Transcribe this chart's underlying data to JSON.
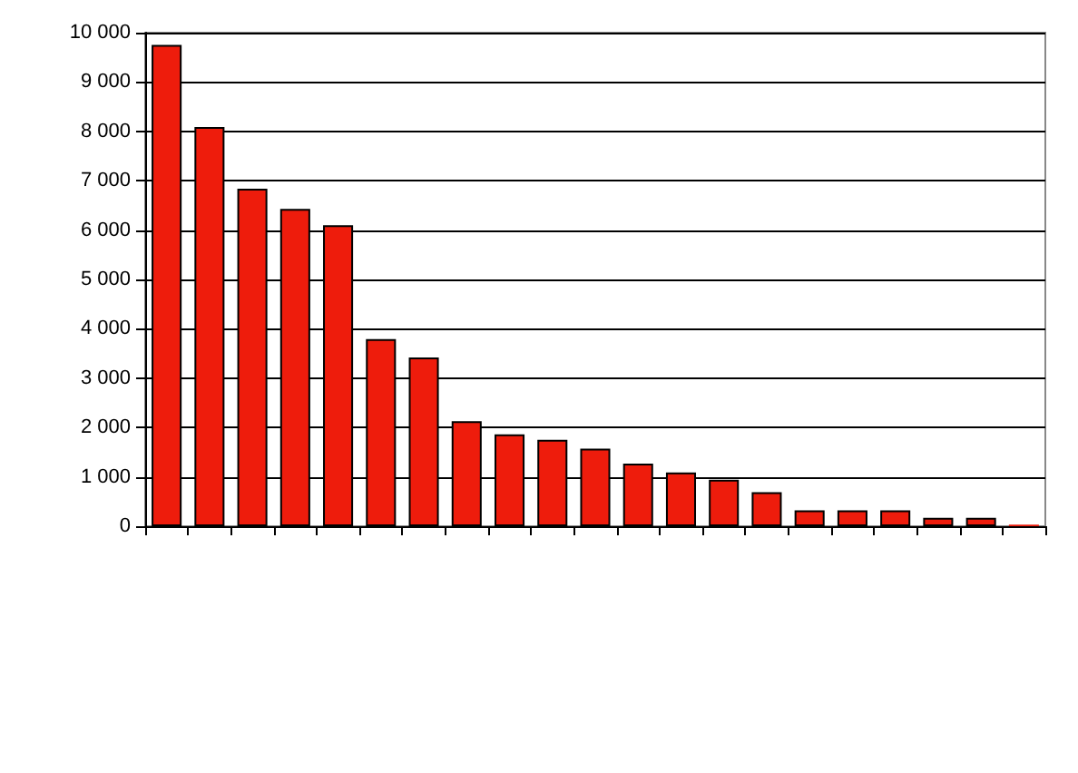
{
  "chart_data": {
    "type": "bar",
    "categories": [
      null,
      null,
      null,
      null,
      null,
      null,
      null,
      null,
      null,
      null,
      null,
      null,
      null,
      null,
      null,
      null,
      null,
      null,
      null,
      null,
      null
    ],
    "values": [
      9750,
      8090,
      6840,
      6430,
      6100,
      3790,
      3420,
      2130,
      1860,
      1750,
      1570,
      1270,
      1090,
      940,
      690,
      320,
      320,
      320,
      170,
      170,
      30
    ],
    "color": "#ee1c0c",
    "ylim": [
      0,
      10000
    ],
    "yticks": [
      0,
      {
        "value": 1000,
        "label": "1 000"
      },
      {
        "value": 2000,
        "label": "2 000"
      },
      {
        "value": 3000,
        "label": "3 000"
      },
      {
        "value": 4000,
        "label": "4 000"
      },
      {
        "value": 5000,
        "label": "5 000"
      },
      {
        "value": 6000,
        "label": "6 000"
      },
      {
        "value": 7000,
        "label": "7 000"
      },
      {
        "value": 8000,
        "label": "8 000"
      },
      {
        "value": 9000,
        "label": "9 000"
      },
      {
        "value": 10000,
        "label": "10 000"
      }
    ],
    "grid": "y"
  }
}
